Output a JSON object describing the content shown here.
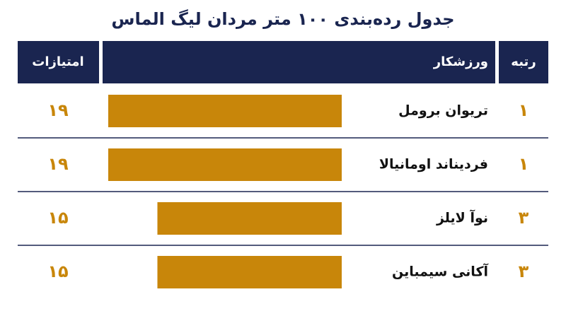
{
  "chart_data": {
    "type": "bar",
    "title": "جدول رده‌بندی ۱۰۰ متر مردان لیگ الماس",
    "headers": [
      "رتبه",
      "ورزشکار",
      "امتیازات"
    ],
    "ranks": [
      "۱",
      "۱",
      "۳",
      "۳"
    ],
    "categories": [
      "تریوان برومل",
      "فردیناند اومانیالا",
      "نوآ لایلز",
      "آکانی سیمباین"
    ],
    "values": [
      19,
      19,
      15,
      15
    ],
    "value_labels": [
      "۱۹",
      "۱۹",
      "۱۵",
      "۱۵"
    ],
    "color": "#c8860a"
  }
}
